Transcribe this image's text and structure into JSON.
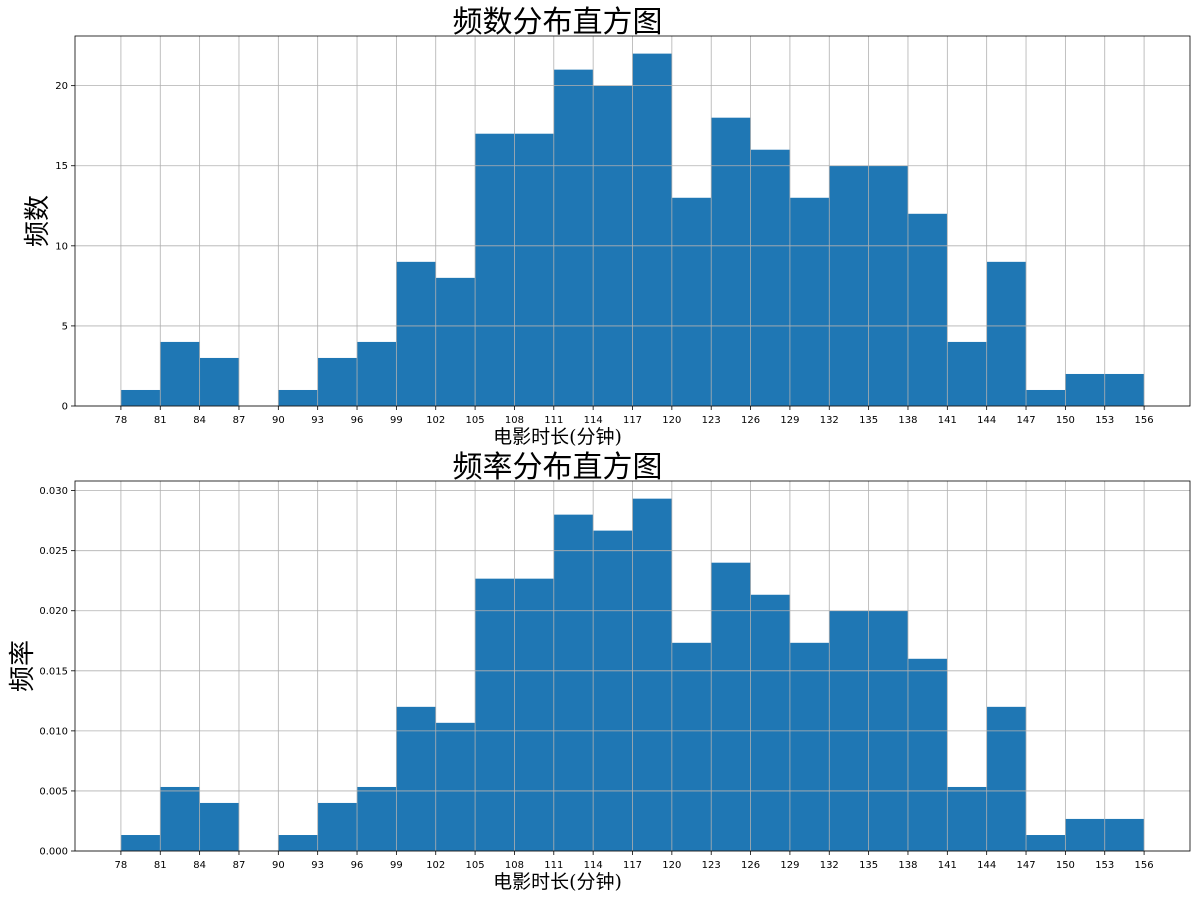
{
  "chart_data": [
    {
      "type": "bar",
      "title": "频数分布直方图",
      "xlabel": "电影时长(分钟)",
      "ylabel": "频数",
      "bin_edges": [
        78,
        81,
        84,
        87,
        90,
        93,
        96,
        99,
        102,
        105,
        108,
        111,
        114,
        117,
        120,
        123,
        126,
        129,
        132,
        135,
        138,
        141,
        144,
        147,
        150,
        153,
        156
      ],
      "values": [
        1,
        4,
        3,
        0,
        1,
        3,
        4,
        9,
        8,
        17,
        17,
        21,
        20,
        22,
        13,
        18,
        16,
        13,
        15,
        15,
        12,
        4,
        9,
        1,
        2,
        2
      ],
      "xlim": [
        74.5,
        159.5
      ],
      "ylim": [
        0,
        23.1
      ],
      "xticks": [
        "78",
        "81",
        "84",
        "87",
        "90",
        "93",
        "96",
        "99",
        "102",
        "105",
        "108",
        "111",
        "114",
        "117",
        "120",
        "123",
        "126",
        "129",
        "132",
        "135",
        "138",
        "141",
        "144",
        "147",
        "150",
        "153",
        "156"
      ],
      "yticks": [
        "0",
        "5",
        "10",
        "15",
        "20"
      ],
      "ytick_values": [
        0,
        5,
        10,
        15,
        20
      ],
      "grid": true,
      "bar_color": "#1f77b4"
    },
    {
      "type": "bar",
      "title": "频率分布直方图",
      "xlabel": "电影时长(分钟)",
      "ylabel": "频率",
      "bin_edges": [
        78,
        81,
        84,
        87,
        90,
        93,
        96,
        99,
        102,
        105,
        108,
        111,
        114,
        117,
        120,
        123,
        126,
        129,
        132,
        135,
        138,
        141,
        144,
        147,
        150,
        153,
        156
      ],
      "values": [
        0.00133,
        0.00533,
        0.004,
        0,
        0.00133,
        0.004,
        0.00533,
        0.012,
        0.01067,
        0.02267,
        0.02267,
        0.028,
        0.02667,
        0.02933,
        0.01733,
        0.024,
        0.02133,
        0.01733,
        0.02,
        0.02,
        0.016,
        0.00533,
        0.012,
        0.00133,
        0.00267,
        0.00267
      ],
      "xlim": [
        74.5,
        159.5
      ],
      "ylim": [
        0,
        0.0308
      ],
      "xticks": [
        "78",
        "81",
        "84",
        "87",
        "90",
        "93",
        "96",
        "99",
        "102",
        "105",
        "108",
        "111",
        "114",
        "117",
        "120",
        "123",
        "126",
        "129",
        "132",
        "135",
        "138",
        "141",
        "144",
        "147",
        "150",
        "153",
        "156"
      ],
      "yticks": [
        "0.000",
        "0.005",
        "0.010",
        "0.015",
        "0.020",
        "0.025",
        "0.030"
      ],
      "ytick_values": [
        0,
        0.005,
        0.01,
        0.015,
        0.02,
        0.025,
        0.03
      ],
      "grid": true,
      "bar_color": "#1f77b4"
    }
  ]
}
